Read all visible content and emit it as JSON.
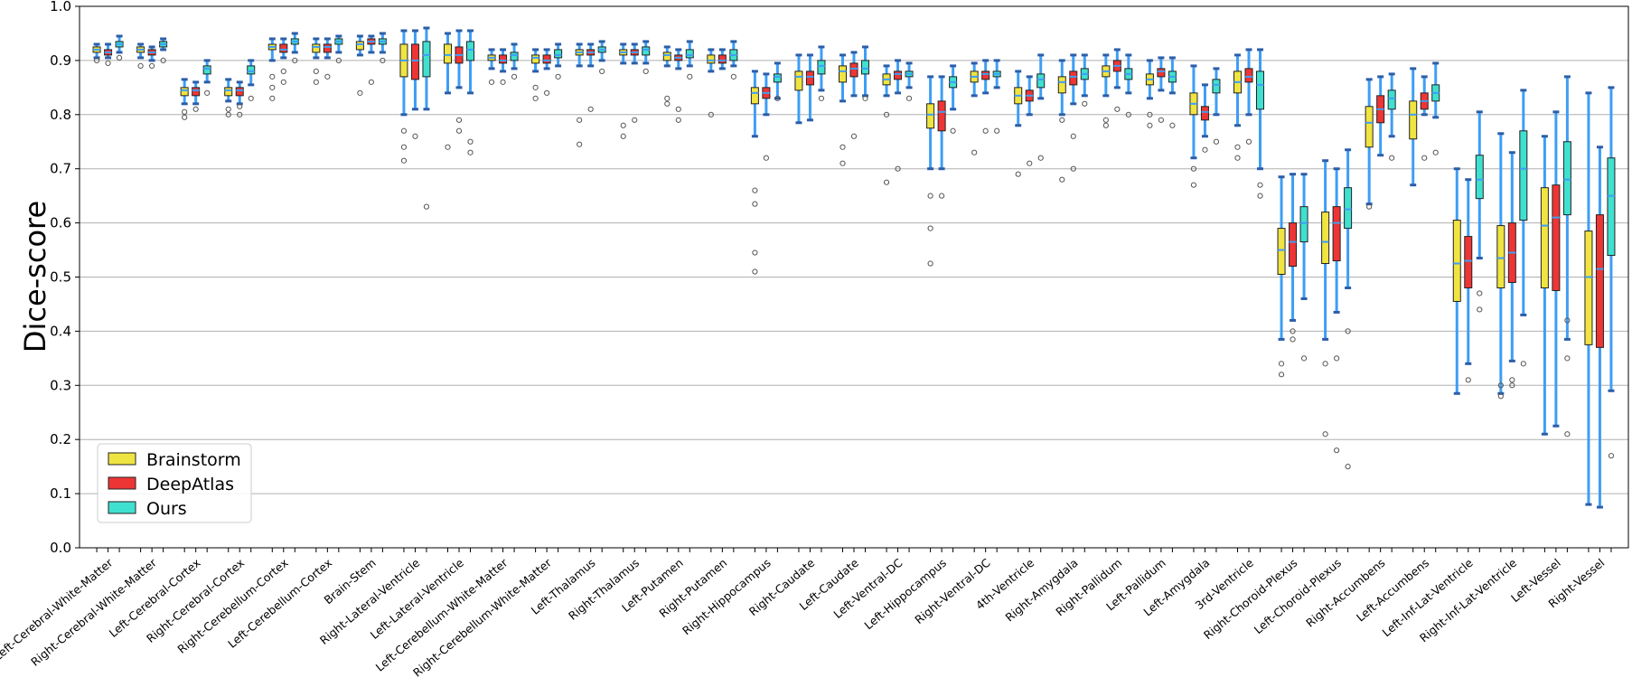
{
  "chart_data": {
    "type": "box",
    "title": "",
    "xlabel": "",
    "ylabel": "Dice-score",
    "ylim": [
      0.0,
      1.0
    ],
    "yticks": [
      "0.0",
      "0.1",
      "0.2",
      "0.3",
      "0.4",
      "0.5",
      "0.6",
      "0.7",
      "0.8",
      "0.9",
      "1.0"
    ],
    "grid": "horizontal",
    "legend_position": "lower-left",
    "categories": [
      "Left-Cerebral-White-Matter",
      "Right-Cerebral-White-Matter",
      "Left-Cerebral-Cortex",
      "Right-Cerebral-Cortex",
      "Right-Cerebellum-Cortex",
      "Left-Cerebellum-Cortex",
      "Brain-Stem",
      "Right-Lateral-Ventricle",
      "Left-Lateral-Ventricle",
      "Left-Cerebellum-White-Matter",
      "Right-Cerebellum-White-Matter",
      "Left-Thalamus",
      "Right-Thalamus",
      "Left-Putamen",
      "Right-Putamen",
      "Right-Hippocampus",
      "Right-Caudate",
      "Left-Caudate",
      "Left-Ventral-DC",
      "Left-Hippocampus",
      "Right-Ventral-DC",
      "4th-Ventricle",
      "Right-Amygdala",
      "Right-Pallidum",
      "Left-Pallidum",
      "Left-Amygdala",
      "3rd-Ventricle",
      "Right-Choroid-Plexus",
      "Left-Choroid-Plexus",
      "Right-Accumbens",
      "Left-Accumbens",
      "Left-Inf-Lat-Ventricle",
      "Right-Inf-Lat-Ventricle",
      "Left-Vessel",
      "Right-Vessel"
    ],
    "series": [
      {
        "name": "Brainstorm",
        "color": "#f0e442",
        "stats": [
          [
            0.905,
            0.915,
            0.92,
            0.925,
            0.93
          ],
          [
            0.905,
            0.915,
            0.92,
            0.925,
            0.93
          ],
          [
            0.82,
            0.835,
            0.845,
            0.85,
            0.865
          ],
          [
            0.825,
            0.835,
            0.845,
            0.85,
            0.865
          ],
          [
            0.9,
            0.92,
            0.925,
            0.93,
            0.94
          ],
          [
            0.905,
            0.915,
            0.925,
            0.93,
            0.94
          ],
          [
            0.91,
            0.92,
            0.93,
            0.935,
            0.945
          ],
          [
            0.8,
            0.87,
            0.9,
            0.93,
            0.955
          ],
          [
            0.84,
            0.895,
            0.91,
            0.93,
            0.95
          ],
          [
            0.885,
            0.9,
            0.905,
            0.91,
            0.92
          ],
          [
            0.88,
            0.895,
            0.905,
            0.91,
            0.92
          ],
          [
            0.89,
            0.91,
            0.915,
            0.92,
            0.93
          ],
          [
            0.895,
            0.91,
            0.915,
            0.92,
            0.93
          ],
          [
            0.89,
            0.9,
            0.91,
            0.915,
            0.925
          ],
          [
            0.88,
            0.895,
            0.9,
            0.91,
            0.92
          ],
          [
            0.76,
            0.82,
            0.84,
            0.85,
            0.88
          ],
          [
            0.785,
            0.845,
            0.87,
            0.88,
            0.91
          ],
          [
            0.825,
            0.86,
            0.88,
            0.89,
            0.91
          ],
          [
            0.835,
            0.855,
            0.865,
            0.875,
            0.89
          ],
          [
            0.7,
            0.775,
            0.8,
            0.82,
            0.87
          ],
          [
            0.835,
            0.86,
            0.87,
            0.88,
            0.895
          ],
          [
            0.78,
            0.82,
            0.835,
            0.85,
            0.88
          ],
          [
            0.8,
            0.84,
            0.86,
            0.87,
            0.9
          ],
          [
            0.835,
            0.87,
            0.88,
            0.89,
            0.91
          ],
          [
            0.83,
            0.855,
            0.865,
            0.875,
            0.9
          ],
          [
            0.72,
            0.8,
            0.82,
            0.84,
            0.89
          ],
          [
            0.78,
            0.84,
            0.86,
            0.88,
            0.91
          ],
          [
            0.385,
            0.505,
            0.55,
            0.59,
            0.685
          ],
          [
            0.385,
            0.525,
            0.565,
            0.62,
            0.715
          ],
          [
            0.635,
            0.74,
            0.785,
            0.815,
            0.865
          ],
          [
            0.67,
            0.755,
            0.8,
            0.825,
            0.885
          ],
          [
            0.285,
            0.455,
            0.525,
            0.605,
            0.7
          ],
          [
            0.285,
            0.48,
            0.535,
            0.595,
            0.765
          ],
          [
            0.21,
            0.48,
            0.595,
            0.665,
            0.76
          ],
          [
            0.08,
            0.375,
            0.5,
            0.585,
            0.84
          ]
        ],
        "outliers": [
          [
            0.9
          ],
          [
            0.89
          ],
          [
            0.795,
            0.805
          ],
          [
            0.8,
            0.81
          ],
          [
            0.87,
            0.85,
            0.83
          ],
          [
            0.88,
            0.86
          ],
          [
            0.84
          ],
          [
            0.77,
            0.74,
            0.715
          ],
          [
            0.74
          ],
          [
            0.86
          ],
          [
            0.85,
            0.83
          ],
          [
            0.79,
            0.745
          ],
          [
            0.78,
            0.76
          ],
          [
            0.83,
            0.82
          ],
          [
            0.8
          ],
          [
            0.66,
            0.635,
            0.545,
            0.51
          ],
          [],
          [
            0.74,
            0.71
          ],
          [
            0.8,
            0.675
          ],
          [
            0.65,
            0.59,
            0.525
          ],
          [
            0.73
          ],
          [
            0.69
          ],
          [
            0.79,
            0.68
          ],
          [
            0.79,
            0.78
          ],
          [
            0.8,
            0.78
          ],
          [
            0.7,
            0.67
          ],
          [
            0.72,
            0.74
          ],
          [
            0.34,
            0.32
          ],
          [
            0.34,
            0.21
          ],
          [
            0.63
          ],
          [],
          [],
          [
            0.3,
            0.28
          ],
          [],
          []
        ]
      },
      {
        "name": "DeepAtlas",
        "color": "#ee3535",
        "stats": [
          [
            0.905,
            0.91,
            0.915,
            0.92,
            0.93
          ],
          [
            0.9,
            0.91,
            0.915,
            0.92,
            0.925
          ],
          [
            0.82,
            0.835,
            0.845,
            0.85,
            0.86
          ],
          [
            0.82,
            0.835,
            0.845,
            0.85,
            0.86
          ],
          [
            0.905,
            0.915,
            0.92,
            0.93,
            0.94
          ],
          [
            0.905,
            0.915,
            0.925,
            0.93,
            0.94
          ],
          [
            0.915,
            0.93,
            0.935,
            0.94,
            0.945
          ],
          [
            0.81,
            0.865,
            0.9,
            0.93,
            0.955
          ],
          [
            0.85,
            0.895,
            0.91,
            0.925,
            0.955
          ],
          [
            0.88,
            0.895,
            0.9,
            0.91,
            0.92
          ],
          [
            0.885,
            0.895,
            0.9,
            0.91,
            0.92
          ],
          [
            0.89,
            0.91,
            0.915,
            0.92,
            0.93
          ],
          [
            0.895,
            0.91,
            0.915,
            0.92,
            0.93
          ],
          [
            0.885,
            0.9,
            0.905,
            0.91,
            0.92
          ],
          [
            0.885,
            0.895,
            0.9,
            0.91,
            0.92
          ],
          [
            0.8,
            0.83,
            0.84,
            0.85,
            0.875
          ],
          [
            0.79,
            0.855,
            0.87,
            0.88,
            0.91
          ],
          [
            0.835,
            0.87,
            0.885,
            0.895,
            0.915
          ],
          [
            0.84,
            0.865,
            0.875,
            0.88,
            0.9
          ],
          [
            0.7,
            0.77,
            0.805,
            0.825,
            0.87
          ],
          [
            0.84,
            0.865,
            0.875,
            0.88,
            0.9
          ],
          [
            0.8,
            0.825,
            0.835,
            0.845,
            0.87
          ],
          [
            0.82,
            0.855,
            0.87,
            0.88,
            0.91
          ],
          [
            0.85,
            0.88,
            0.89,
            0.9,
            0.92
          ],
          [
            0.845,
            0.87,
            0.88,
            0.885,
            0.905
          ],
          [
            0.76,
            0.79,
            0.805,
            0.815,
            0.855
          ],
          [
            0.8,
            0.86,
            0.87,
            0.885,
            0.92
          ],
          [
            0.42,
            0.52,
            0.565,
            0.6,
            0.69
          ],
          [
            0.435,
            0.53,
            0.6,
            0.63,
            0.7
          ],
          [
            0.725,
            0.785,
            0.81,
            0.835,
            0.87
          ],
          [
            0.8,
            0.81,
            0.825,
            0.84,
            0.87
          ],
          [
            0.34,
            0.48,
            0.53,
            0.575,
            0.68
          ],
          [
            0.345,
            0.49,
            0.545,
            0.6,
            0.73
          ],
          [
            0.225,
            0.475,
            0.61,
            0.67,
            0.805
          ],
          [
            0.075,
            0.37,
            0.515,
            0.615,
            0.74
          ]
        ],
        "outliers": [
          [
            0.895
          ],
          [
            0.89
          ],
          [
            0.81
          ],
          [
            0.815,
            0.8
          ],
          [
            0.88,
            0.86
          ],
          [
            0.87
          ],
          [
            0.86
          ],
          [
            0.76
          ],
          [
            0.79,
            0.77
          ],
          [
            0.86
          ],
          [
            0.84
          ],
          [
            0.81
          ],
          [
            0.79
          ],
          [
            0.81,
            0.79
          ],
          [],
          [
            0.72
          ],
          [],
          [
            0.76
          ],
          [
            0.7
          ],
          [
            0.65
          ],
          [
            0.77
          ],
          [
            0.71
          ],
          [
            0.76,
            0.7
          ],
          [
            0.81
          ],
          [
            0.79
          ],
          [
            0.735
          ],
          [
            0.75
          ],
          [
            0.4,
            0.385
          ],
          [
            0.35,
            0.18
          ],
          [],
          [
            0.72
          ],
          [
            0.31
          ],
          [
            0.31,
            0.3
          ],
          [],
          []
        ]
      },
      {
        "name": "Ours",
        "color": "#40e0d0",
        "stats": [
          [
            0.915,
            0.925,
            0.93,
            0.935,
            0.945
          ],
          [
            0.92,
            0.925,
            0.93,
            0.935,
            0.94
          ],
          [
            0.86,
            0.875,
            0.885,
            0.89,
            0.9
          ],
          [
            0.855,
            0.875,
            0.88,
            0.89,
            0.9
          ],
          [
            0.915,
            0.93,
            0.935,
            0.94,
            0.95
          ],
          [
            0.915,
            0.93,
            0.935,
            0.94,
            0.945
          ],
          [
            0.915,
            0.93,
            0.935,
            0.94,
            0.95
          ],
          [
            0.81,
            0.87,
            0.91,
            0.935,
            0.96
          ],
          [
            0.84,
            0.9,
            0.92,
            0.935,
            0.955
          ],
          [
            0.885,
            0.9,
            0.91,
            0.915,
            0.93
          ],
          [
            0.89,
            0.905,
            0.91,
            0.92,
            0.93
          ],
          [
            0.9,
            0.915,
            0.92,
            0.925,
            0.935
          ],
          [
            0.895,
            0.91,
            0.92,
            0.925,
            0.935
          ],
          [
            0.89,
            0.905,
            0.91,
            0.92,
            0.935
          ],
          [
            0.89,
            0.9,
            0.91,
            0.92,
            0.935
          ],
          [
            0.83,
            0.86,
            0.87,
            0.875,
            0.895
          ],
          [
            0.845,
            0.875,
            0.89,
            0.9,
            0.925
          ],
          [
            0.835,
            0.875,
            0.885,
            0.9,
            0.925
          ],
          [
            0.85,
            0.87,
            0.875,
            0.88,
            0.895
          ],
          [
            0.81,
            0.85,
            0.86,
            0.87,
            0.89
          ],
          [
            0.85,
            0.87,
            0.875,
            0.88,
            0.9
          ],
          [
            0.83,
            0.85,
            0.865,
            0.875,
            0.91
          ],
          [
            0.835,
            0.865,
            0.875,
            0.885,
            0.91
          ],
          [
            0.84,
            0.865,
            0.875,
            0.885,
            0.91
          ],
          [
            0.84,
            0.86,
            0.87,
            0.88,
            0.905
          ],
          [
            0.8,
            0.84,
            0.855,
            0.865,
            0.885
          ],
          [
            0.7,
            0.81,
            0.855,
            0.88,
            0.92
          ],
          [
            0.46,
            0.565,
            0.6,
            0.63,
            0.69
          ],
          [
            0.48,
            0.59,
            0.625,
            0.665,
            0.735
          ],
          [
            0.76,
            0.81,
            0.83,
            0.845,
            0.875
          ],
          [
            0.795,
            0.825,
            0.84,
            0.855,
            0.895
          ],
          [
            0.535,
            0.645,
            0.68,
            0.725,
            0.805
          ],
          [
            0.43,
            0.605,
            0.7,
            0.77,
            0.845
          ],
          [
            0.385,
            0.615,
            0.68,
            0.75,
            0.87
          ],
          [
            0.29,
            0.54,
            0.65,
            0.72,
            0.85
          ]
        ],
        "outliers": [
          [
            0.905
          ],
          [
            0.9
          ],
          [
            0.84
          ],
          [
            0.83
          ],
          [
            0.9
          ],
          [
            0.9
          ],
          [
            0.9
          ],
          [
            0.63
          ],
          [
            0.75,
            0.73
          ],
          [
            0.87
          ],
          [
            0.87
          ],
          [
            0.88
          ],
          [
            0.88
          ],
          [
            0.87
          ],
          [
            0.87
          ],
          [
            0.83
          ],
          [
            0.83
          ],
          [
            0.83
          ],
          [
            0.83
          ],
          [
            0.77
          ],
          [
            0.77
          ],
          [
            0.72
          ],
          [
            0.82
          ],
          [
            0.8
          ],
          [
            0.78
          ],
          [
            0.75
          ],
          [
            0.67,
            0.65
          ],
          [
            0.35
          ],
          [
            0.4,
            0.15
          ],
          [
            0.72
          ],
          [
            0.73
          ],
          [
            0.47,
            0.44
          ],
          [
            0.34
          ],
          [
            0.42,
            0.35,
            0.21
          ],
          [
            0.17
          ]
        ]
      }
    ]
  }
}
